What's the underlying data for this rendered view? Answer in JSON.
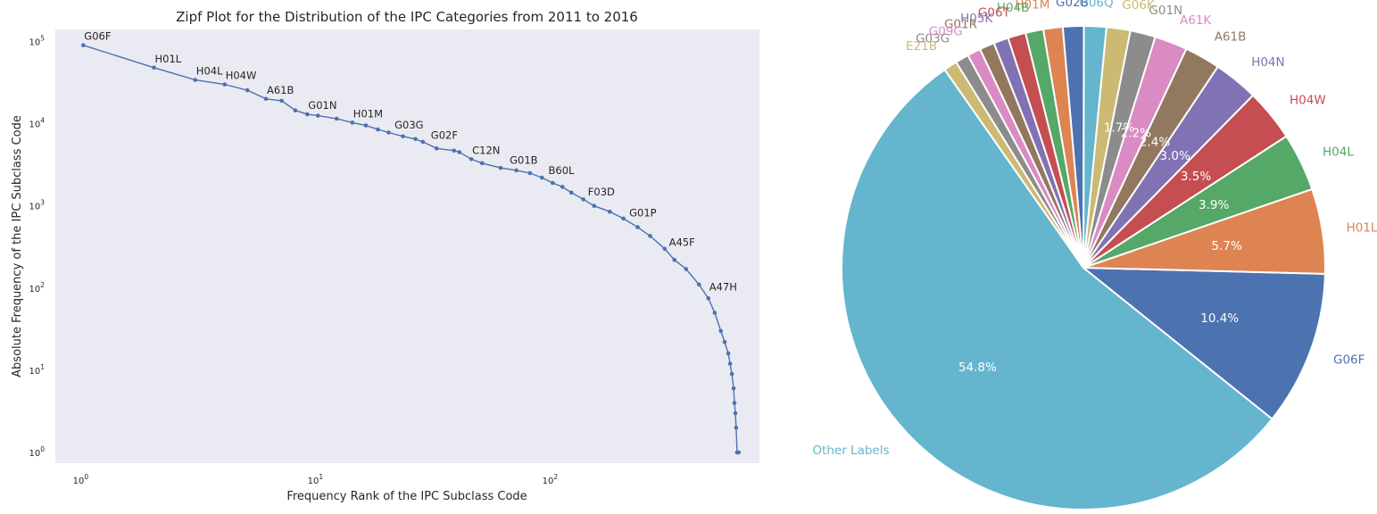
{
  "zipf": {
    "title": "Zipf Plot for the Distribution of the IPC Categories from 2011 to 2016",
    "xlabel": "Frequency Rank of the IPC Subclass Code",
    "ylabel": "Absolute Frequency of the IPC Subclass Code",
    "x_ticks": [
      {
        "base": "10",
        "exp": "0"
      },
      {
        "base": "10",
        "exp": "1"
      },
      {
        "base": "10",
        "exp": "2"
      }
    ],
    "y_ticks": [
      {
        "base": "10",
        "exp": "0"
      },
      {
        "base": "10",
        "exp": "1"
      },
      {
        "base": "10",
        "exp": "2"
      },
      {
        "base": "10",
        "exp": "3"
      },
      {
        "base": "10",
        "exp": "4"
      },
      {
        "base": "10",
        "exp": "5"
      }
    ],
    "line_color": "#4c72b0",
    "background_color": "#eaeaf2"
  },
  "pie": {
    "colors": [
      "#4c72b0",
      "#dd8452",
      "#55a868",
      "#c44e52",
      "#8172b3",
      "#937860",
      "#da8bc3",
      "#8c8c8c",
      "#ccb974",
      "#64b5cd"
    ]
  },
  "chart_data": [
    {
      "type": "line",
      "scale": "log-log",
      "title": "Zipf Plot for the Distribution of the IPC Categories from 2011 to 2016",
      "xlabel": "Frequency Rank of the IPC Subclass Code",
      "ylabel": "Absolute Frequency of the IPC Subclass Code",
      "xlim": [
        0.76,
        760
      ],
      "ylim": [
        0.74,
        140000
      ],
      "points": [
        [
          1,
          90000
        ],
        [
          2,
          48000
        ],
        [
          3,
          34000
        ],
        [
          4,
          30000
        ],
        [
          5,
          25500
        ],
        [
          6,
          20000
        ],
        [
          7,
          19000
        ],
        [
          8,
          14500
        ],
        [
          9,
          13000
        ],
        [
          10,
          12500
        ],
        [
          12,
          11500
        ],
        [
          14,
          10300
        ],
        [
          16,
          9500
        ],
        [
          18,
          8500
        ],
        [
          20,
          7800
        ],
        [
          23,
          7000
        ],
        [
          26,
          6500
        ],
        [
          28,
          6000
        ],
        [
          32,
          5000
        ],
        [
          38,
          4700
        ],
        [
          40,
          4500
        ],
        [
          45,
          3700
        ],
        [
          50,
          3300
        ],
        [
          60,
          2900
        ],
        [
          70,
          2700
        ],
        [
          80,
          2500
        ],
        [
          90,
          2200
        ],
        [
          100,
          1900
        ],
        [
          110,
          1700
        ],
        [
          120,
          1450
        ],
        [
          135,
          1200
        ],
        [
          150,
          1000
        ],
        [
          175,
          850
        ],
        [
          200,
          700
        ],
        [
          230,
          550
        ],
        [
          260,
          430
        ],
        [
          300,
          300
        ],
        [
          330,
          220
        ],
        [
          370,
          170
        ],
        [
          420,
          110
        ],
        [
          460,
          75
        ],
        [
          490,
          50
        ],
        [
          520,
          30
        ],
        [
          540,
          22
        ],
        [
          560,
          16
        ],
        [
          570,
          12
        ],
        [
          580,
          9
        ],
        [
          590,
          6
        ],
        [
          595,
          4
        ],
        [
          600,
          3
        ],
        [
          605,
          2
        ],
        [
          610,
          1
        ],
        [
          620,
          1
        ]
      ],
      "annotations": [
        {
          "label": "G06F",
          "rank": 1,
          "value": 90000
        },
        {
          "label": "H01L",
          "rank": 2,
          "value": 48000
        },
        {
          "label": "H04L",
          "rank": 3,
          "value": 34000
        },
        {
          "label": "H04W",
          "rank": 4,
          "value": 30000
        },
        {
          "label": "A61B",
          "rank": 6,
          "value": 20000
        },
        {
          "label": "G01N",
          "rank": 9,
          "value": 13000
        },
        {
          "label": "H01M",
          "rank": 14,
          "value": 10300
        },
        {
          "label": "G03G",
          "rank": 21,
          "value": 7500
        },
        {
          "label": "G02F",
          "rank": 30,
          "value": 5600
        },
        {
          "label": "C12N",
          "rank": 45,
          "value": 3700
        },
        {
          "label": "G01B",
          "rank": 65,
          "value": 2800
        },
        {
          "label": "B60L",
          "rank": 95,
          "value": 2100
        },
        {
          "label": "F03D",
          "rank": 140,
          "value": 1150
        },
        {
          "label": "G01P",
          "rank": 210,
          "value": 640
        },
        {
          "label": "A45F",
          "rank": 310,
          "value": 280
        },
        {
          "label": "A47H",
          "rank": 460,
          "value": 80
        }
      ]
    },
    {
      "type": "pie",
      "start_angle_deg": 125,
      "direction": "counterclockwise",
      "slices": [
        {
          "label": "Other Labels",
          "value": 54.8,
          "pct": "54.8%"
        },
        {
          "label": "G06F",
          "value": 10.4,
          "pct": "10.4%"
        },
        {
          "label": "H01L",
          "value": 5.7,
          "pct": "5.7%"
        },
        {
          "label": "H04L",
          "value": 3.9,
          "pct": "3.9%"
        },
        {
          "label": "H04W",
          "value": 3.5,
          "pct": "3.5%"
        },
        {
          "label": "H04N",
          "value": 3.0,
          "pct": "3.0%"
        },
        {
          "label": "A61B",
          "value": 2.4,
          "pct": "2.4%"
        },
        {
          "label": "A61K",
          "value": 2.2,
          "pct": "2.2%"
        },
        {
          "label": "G01N",
          "value": 1.7,
          "pct": "1.7%"
        },
        {
          "label": "G06K",
          "value": 1.6,
          "pct": ""
        },
        {
          "label": "G06Q",
          "value": 1.5,
          "pct": ""
        },
        {
          "label": "G02B",
          "value": 1.4,
          "pct": ""
        },
        {
          "label": "H01M",
          "value": 1.3,
          "pct": ""
        },
        {
          "label": "H04B",
          "value": 1.2,
          "pct": ""
        },
        {
          "label": "G06T",
          "value": 1.2,
          "pct": ""
        },
        {
          "label": "H05K",
          "value": 1.0,
          "pct": ""
        },
        {
          "label": "G01R",
          "value": 1.0,
          "pct": ""
        },
        {
          "label": "G09G",
          "value": 0.9,
          "pct": ""
        },
        {
          "label": "G03G",
          "value": 0.9,
          "pct": ""
        },
        {
          "label": "E21B",
          "value": 0.9,
          "pct": ""
        }
      ]
    }
  ]
}
